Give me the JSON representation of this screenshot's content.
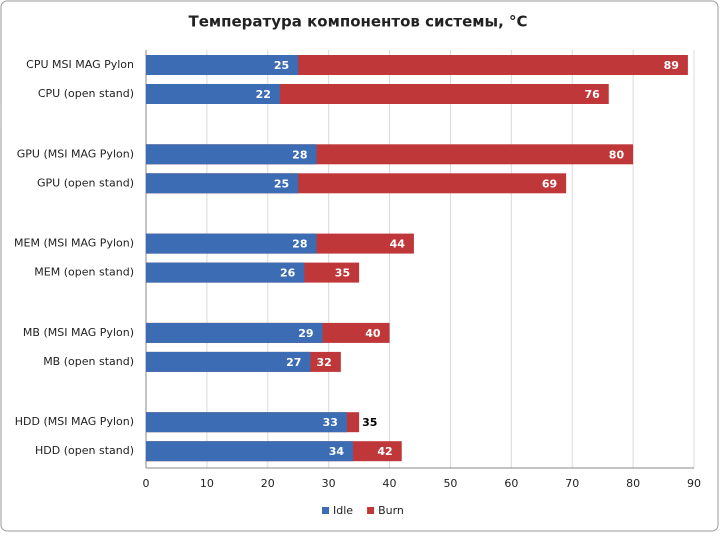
{
  "chart_data": {
    "type": "bar",
    "orientation": "horizontal",
    "overlap": true,
    "title": "Температура компонентов системы, °C",
    "categories": [
      "CPU MSI MAG Pylon",
      "CPU (open stand)",
      "GPU (MSI MAG Pylon)",
      "GPU (open stand)",
      "MEM (MSI MAG Pylon)",
      "MEM (open stand)",
      "MB (MSI MAG Pylon)",
      "MB (open stand)",
      "HDD (MSI MAG Pylon)",
      "HDD (open stand)"
    ],
    "series": [
      {
        "name": "Idle",
        "color": "#3c6db4",
        "values": [
          25,
          22,
          28,
          25,
          28,
          26,
          29,
          27,
          33,
          34
        ]
      },
      {
        "name": "Burn",
        "color": "#c0373a",
        "values": [
          89,
          76,
          80,
          69,
          44,
          35,
          40,
          32,
          35,
          42
        ]
      }
    ],
    "xlim": [
      0,
      90
    ],
    "xticks": [
      0,
      10,
      20,
      30,
      40,
      50,
      60,
      70,
      80,
      90
    ],
    "grid": true,
    "legend": "bottom"
  }
}
